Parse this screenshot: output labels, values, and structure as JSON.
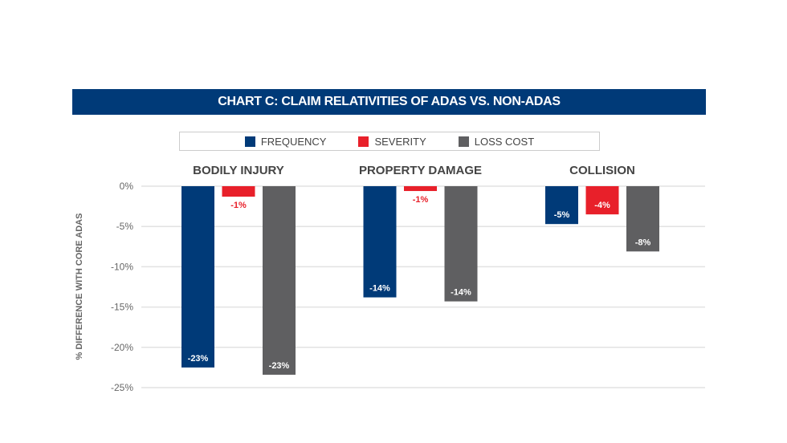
{
  "chart_data": {
    "type": "bar",
    "title": "CHART C: CLAIM RELATIVITIES OF ADAS VS. NON-ADAS",
    "xlabel": "",
    "ylabel": "% DIFFERENCE WITH CORE ADAS",
    "ylim": [
      -25,
      0
    ],
    "yticks": [
      "0%",
      "-5%",
      "-10%",
      "-15%",
      "-20%",
      "-25%"
    ],
    "ytick_values": [
      0,
      -5,
      -10,
      -15,
      -20,
      -25
    ],
    "grid": true,
    "legend_placement": "top-center",
    "categories": [
      "BODILY INJURY",
      "PROPERTY DAMAGE",
      "COLLISION"
    ],
    "series": [
      {
        "name": "FREQUENCY",
        "color": "#003a78",
        "values": [
          -22.5,
          -13.8,
          -4.7
        ],
        "labels": [
          "-23%",
          "-14%",
          "-5%"
        ]
      },
      {
        "name": "SEVERITY",
        "color": "#e8202a",
        "values": [
          -1.3,
          -0.6,
          -3.5
        ],
        "labels": [
          "-1%",
          "-1%",
          "-4%"
        ]
      },
      {
        "name": "LOSS COST",
        "color": "#5f5f61",
        "values": [
          -23.4,
          -14.3,
          -8.1
        ],
        "labels": [
          "-23%",
          "-14%",
          "-8%"
        ]
      }
    ]
  }
}
